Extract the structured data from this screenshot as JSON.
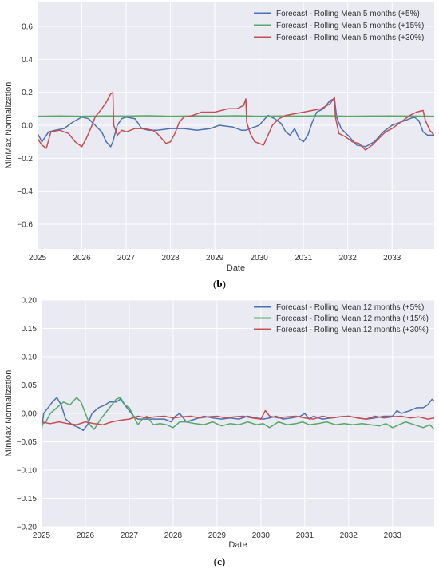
{
  "chart_data": [
    {
      "type": "line",
      "xlabel": "Date",
      "ylabel": "MinMax Normalization",
      "caption_letter": "b",
      "xlim": [
        2025.0,
        2033.95
      ],
      "ylim": [
        -0.75,
        0.75
      ],
      "xticks": [
        "2025",
        "2026",
        "2027",
        "2028",
        "2029",
        "2030",
        "2031",
        "2032",
        "2033"
      ],
      "yticks": [
        "0.6",
        "0.4",
        "0.2",
        "0.0",
        "−0.2",
        "−0.4",
        "−0.6"
      ],
      "ytick_values": [
        0.6,
        0.4,
        0.2,
        0.0,
        -0.2,
        -0.4,
        -0.6
      ],
      "grid": true,
      "legend_placement": "top-right",
      "series": [
        {
          "name": "Forecast - Rolling Mean 5 months (+5%)",
          "color": "#4c72b0",
          "x": [
            2025.0,
            2025.1,
            2025.25,
            2025.4,
            2025.6,
            2025.8,
            2026.0,
            2026.15,
            2026.3,
            2026.45,
            2026.55,
            2026.65,
            2026.7,
            2026.8,
            2026.9,
            2027.0,
            2027.2,
            2027.35,
            2027.5,
            2027.7,
            2028.0,
            2028.3,
            2028.6,
            2028.9,
            2029.1,
            2029.4,
            2029.6,
            2029.7,
            2029.8,
            2029.9,
            2030.0,
            2030.1,
            2030.2,
            2030.35,
            2030.5,
            2030.6,
            2030.7,
            2030.8,
            2030.9,
            2031.0,
            2031.1,
            2031.2,
            2031.3,
            2031.45,
            2031.6,
            2031.7,
            2031.75,
            2031.85,
            2032.0,
            2032.2,
            2032.4,
            2032.6,
            2032.8,
            2033.0,
            2033.2,
            2033.4,
            2033.5,
            2033.6,
            2033.7,
            2033.8,
            2033.95
          ],
          "y": [
            -0.05,
            -0.1,
            -0.04,
            -0.03,
            -0.02,
            0.02,
            0.05,
            0.04,
            0.0,
            -0.04,
            -0.1,
            -0.13,
            -0.1,
            0.0,
            0.04,
            0.05,
            0.04,
            -0.02,
            -0.03,
            -0.03,
            -0.02,
            -0.02,
            -0.03,
            -0.02,
            0.0,
            -0.01,
            -0.03,
            -0.03,
            -0.02,
            -0.01,
            0.0,
            0.03,
            0.06,
            0.04,
            0.01,
            -0.04,
            -0.06,
            -0.02,
            -0.08,
            -0.1,
            -0.06,
            0.02,
            0.08,
            0.1,
            0.15,
            0.16,
            0.05,
            -0.02,
            -0.06,
            -0.12,
            -0.13,
            -0.1,
            -0.04,
            0.0,
            0.02,
            0.04,
            0.05,
            0.03,
            -0.04,
            -0.06,
            -0.06
          ]
        },
        {
          "name": "Forecast - Rolling Mean 5 months (+15%)",
          "color": "#55a868",
          "x": [
            2025.0,
            2025.5,
            2026.0,
            2026.5,
            2027.0,
            2027.5,
            2028.0,
            2028.5,
            2029.0,
            2029.5,
            2030.0,
            2030.5,
            2031.0,
            2031.5,
            2032.0,
            2032.5,
            2033.0,
            2033.5,
            2033.95
          ],
          "y": [
            0.055,
            0.057,
            0.055,
            0.057,
            0.056,
            0.058,
            0.055,
            0.057,
            0.056,
            0.058,
            0.055,
            0.057,
            0.056,
            0.058,
            0.055,
            0.056,
            0.057,
            0.056,
            0.055
          ]
        },
        {
          "name": "Forecast - Rolling Mean 5 months (+30%)",
          "color": "#c44e52",
          "x": [
            2025.0,
            2025.1,
            2025.2,
            2025.3,
            2025.5,
            2025.7,
            2025.85,
            2026.0,
            2026.1,
            2026.2,
            2026.3,
            2026.45,
            2026.55,
            2026.65,
            2026.7,
            2026.72,
            2026.8,
            2026.9,
            2027.0,
            2027.2,
            2027.4,
            2027.6,
            2027.7,
            2027.8,
            2027.9,
            2028.0,
            2028.1,
            2028.2,
            2028.3,
            2028.5,
            2028.7,
            2029.0,
            2029.3,
            2029.5,
            2029.65,
            2029.7,
            2029.72,
            2029.8,
            2029.9,
            2030.0,
            2030.1,
            2030.2,
            2030.3,
            2030.45,
            2030.6,
            2030.8,
            2031.0,
            2031.2,
            2031.4,
            2031.6,
            2031.7,
            2031.72,
            2031.8,
            2031.95,
            2032.1,
            2032.25,
            2032.4,
            2032.55,
            2032.7,
            2032.85,
            2033.0,
            2033.2,
            2033.4,
            2033.55,
            2033.7,
            2033.75,
            2033.85,
            2033.95
          ],
          "y": [
            -0.08,
            -0.12,
            -0.14,
            -0.04,
            -0.03,
            -0.05,
            -0.1,
            -0.13,
            -0.08,
            -0.02,
            0.05,
            0.1,
            0.14,
            0.19,
            0.2,
            0.0,
            -0.06,
            -0.03,
            -0.04,
            -0.02,
            -0.02,
            -0.03,
            -0.05,
            -0.08,
            -0.11,
            -0.1,
            -0.05,
            0.02,
            0.05,
            0.06,
            0.08,
            0.08,
            0.1,
            0.1,
            0.12,
            0.16,
            0.02,
            -0.05,
            -0.1,
            -0.11,
            -0.12,
            -0.06,
            0.0,
            0.04,
            0.06,
            0.07,
            0.08,
            0.09,
            0.1,
            0.13,
            0.17,
            0.05,
            -0.05,
            -0.07,
            -0.1,
            -0.11,
            -0.15,
            -0.12,
            -0.08,
            -0.04,
            -0.02,
            0.02,
            0.06,
            0.08,
            0.09,
            0.03,
            -0.03,
            -0.06
          ]
        }
      ]
    },
    {
      "type": "line",
      "xlabel": "Date",
      "ylabel": "MinMax Normalization",
      "caption_letter": "c",
      "xlim": [
        2025.0,
        2033.95
      ],
      "ylim": [
        -0.2,
        0.2
      ],
      "xticks": [
        "2025",
        "2026",
        "2027",
        "2028",
        "2029",
        "2030",
        "2031",
        "2032",
        "2033"
      ],
      "yticks": [
        "0.20",
        "0.15",
        "0.10",
        "0.05",
        "0.00",
        "−0.05",
        "−0.10",
        "−0.15",
        "−0.20"
      ],
      "ytick_values": [
        0.2,
        0.15,
        0.1,
        0.05,
        0.0,
        -0.05,
        -0.1,
        -0.15,
        -0.2
      ],
      "grid": true,
      "legend_placement": "top-right",
      "series": [
        {
          "name": "Forecast - Rolling Mean 12 months (+5%)",
          "color": "#4c72b0",
          "x": [
            2025.0,
            2025.05,
            2025.15,
            2025.25,
            2025.35,
            2025.45,
            2025.55,
            2025.7,
            2025.85,
            2025.95,
            2026.05,
            2026.15,
            2026.3,
            2026.45,
            2026.55,
            2026.7,
            2026.8,
            2026.9,
            2027.0,
            2027.1,
            2027.2,
            2027.4,
            2027.6,
            2027.8,
            2027.95,
            2028.05,
            2028.15,
            2028.3,
            2028.5,
            2028.7,
            2028.9,
            2029.1,
            2029.3,
            2029.5,
            2029.7,
            2029.9,
            2030.05,
            2030.2,
            2030.35,
            2030.5,
            2030.7,
            2030.9,
            2031.0,
            2031.1,
            2031.2,
            2031.4,
            2031.6,
            2031.8,
            2032.0,
            2032.2,
            2032.4,
            2032.6,
            2032.8,
            2033.0,
            2033.1,
            2033.2,
            2033.4,
            2033.55,
            2033.7,
            2033.8,
            2033.9,
            2033.95
          ],
          "y": [
            -0.03,
            0.0,
            0.01,
            0.02,
            0.028,
            0.015,
            -0.01,
            -0.02,
            -0.025,
            -0.03,
            -0.02,
            0.0,
            0.01,
            0.015,
            0.02,
            0.02,
            0.025,
            0.015,
            0.005,
            -0.005,
            -0.01,
            -0.01,
            -0.01,
            -0.01,
            -0.015,
            -0.005,
            0.0,
            -0.015,
            -0.01,
            -0.005,
            -0.008,
            -0.01,
            -0.008,
            -0.01,
            -0.005,
            -0.008,
            -0.01,
            -0.008,
            -0.005,
            -0.01,
            -0.008,
            -0.005,
            0.0,
            -0.01,
            -0.005,
            -0.01,
            -0.008,
            -0.006,
            -0.005,
            -0.008,
            -0.01,
            -0.008,
            -0.005,
            -0.005,
            0.005,
            0.0,
            0.005,
            0.01,
            0.01,
            0.015,
            0.025,
            0.022
          ]
        },
        {
          "name": "Forecast - Rolling Mean 12 months (+15%)",
          "color": "#55a868",
          "x": [
            2025.0,
            2025.1,
            2025.2,
            2025.35,
            2025.5,
            2025.65,
            2025.8,
            2025.9,
            2026.0,
            2026.1,
            2026.2,
            2026.35,
            2026.5,
            2026.6,
            2026.7,
            2026.8,
            2026.9,
            2027.0,
            2027.1,
            2027.2,
            2027.3,
            2027.4,
            2027.55,
            2027.7,
            2027.85,
            2028.0,
            2028.15,
            2028.3,
            2028.5,
            2028.7,
            2028.9,
            2029.1,
            2029.3,
            2029.5,
            2029.7,
            2029.9,
            2030.05,
            2030.2,
            2030.4,
            2030.6,
            2030.8,
            2030.95,
            2031.1,
            2031.3,
            2031.5,
            2031.7,
            2031.9,
            2032.1,
            2032.3,
            2032.5,
            2032.7,
            2032.85,
            2033.0,
            2033.15,
            2033.3,
            2033.5,
            2033.7,
            2033.85,
            2033.95
          ],
          "y": [
            -0.02,
            -0.015,
            0.0,
            0.01,
            0.02,
            0.015,
            0.028,
            0.02,
            0.0,
            -0.02,
            -0.028,
            -0.01,
            0.005,
            0.015,
            0.025,
            0.028,
            0.015,
            0.01,
            -0.005,
            -0.02,
            -0.01,
            -0.005,
            -0.02,
            -0.018,
            -0.02,
            -0.025,
            -0.015,
            -0.015,
            -0.018,
            -0.02,
            -0.015,
            -0.022,
            -0.018,
            -0.02,
            -0.015,
            -0.02,
            -0.018,
            -0.025,
            -0.015,
            -0.02,
            -0.018,
            -0.015,
            -0.02,
            -0.018,
            -0.015,
            -0.02,
            -0.018,
            -0.02,
            -0.018,
            -0.02,
            -0.022,
            -0.018,
            -0.025,
            -0.02,
            -0.015,
            -0.02,
            -0.025,
            -0.02,
            -0.028
          ]
        },
        {
          "name": "Forecast - Rolling Mean 12 months (+30%)",
          "color": "#c44e52",
          "x": [
            2025.0,
            2025.2,
            2025.4,
            2025.6,
            2025.8,
            2026.0,
            2026.2,
            2026.4,
            2026.6,
            2026.8,
            2027.0,
            2027.2,
            2027.4,
            2027.6,
            2027.8,
            2028.0,
            2028.2,
            2028.4,
            2028.6,
            2028.8,
            2029.0,
            2029.2,
            2029.4,
            2029.6,
            2029.8,
            2030.0,
            2030.1,
            2030.2,
            2030.4,
            2030.6,
            2030.8,
            2031.0,
            2031.2,
            2031.4,
            2031.6,
            2031.8,
            2032.0,
            2032.2,
            2032.4,
            2032.6,
            2032.8,
            2033.0,
            2033.2,
            2033.4,
            2033.6,
            2033.8,
            2033.95
          ],
          "y": [
            -0.015,
            -0.018,
            -0.015,
            -0.018,
            -0.02,
            -0.015,
            -0.018,
            -0.02,
            -0.015,
            -0.012,
            -0.01,
            -0.005,
            -0.008,
            -0.006,
            -0.005,
            -0.008,
            -0.006,
            -0.005,
            -0.008,
            -0.006,
            -0.005,
            -0.008,
            -0.006,
            -0.005,
            -0.008,
            -0.01,
            0.005,
            -0.005,
            -0.008,
            -0.006,
            -0.005,
            -0.008,
            -0.01,
            -0.005,
            -0.008,
            -0.006,
            -0.005,
            -0.008,
            -0.01,
            -0.005,
            -0.008,
            -0.006,
            -0.005,
            -0.008,
            -0.006,
            -0.01,
            -0.008
          ]
        }
      ]
    }
  ]
}
